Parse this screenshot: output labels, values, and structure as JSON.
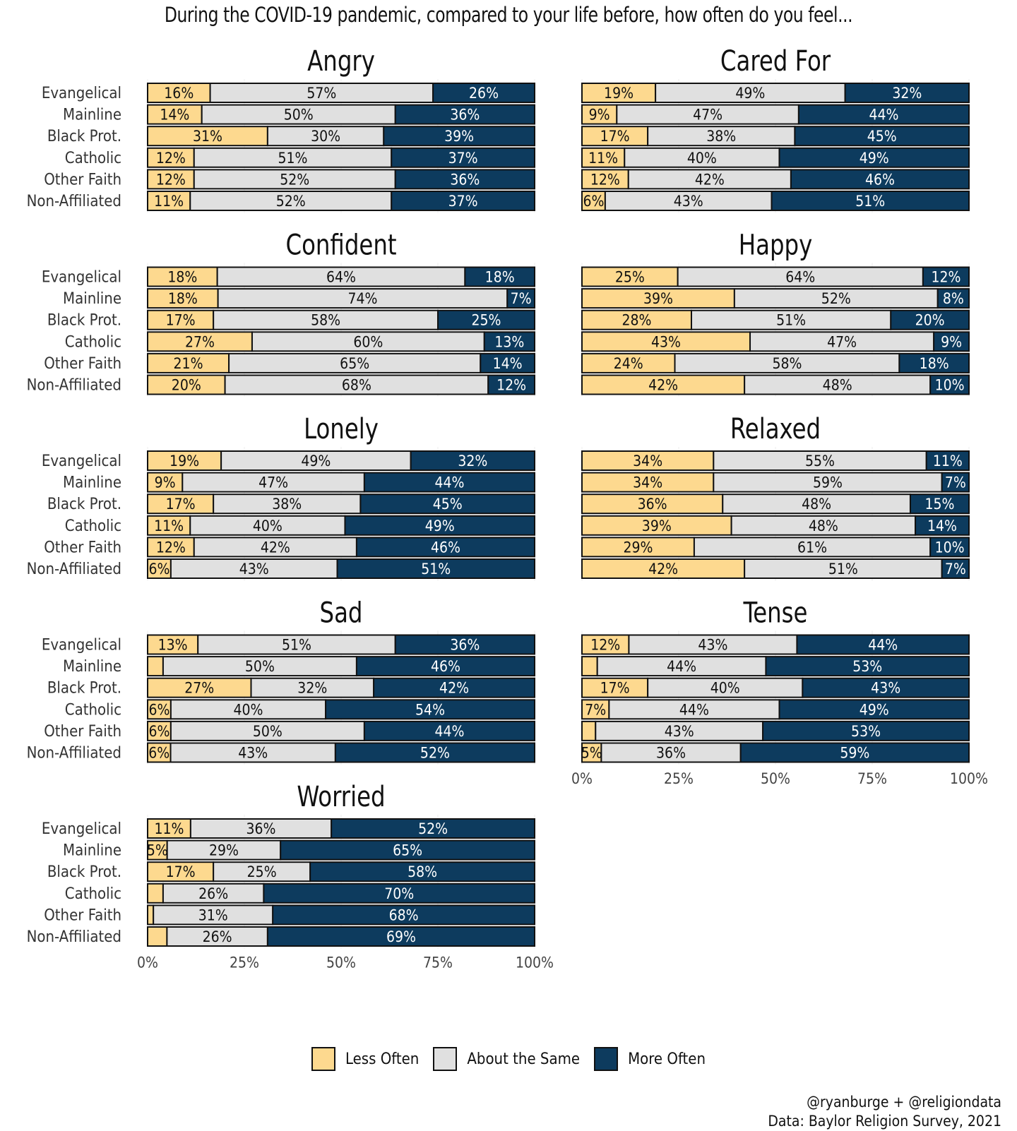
{
  "title": "During the COVID-19 pandemic, compared to your life before, how often do you feel...",
  "colors": {
    "less": "#FDD98F",
    "same": "#E0E0E0",
    "more": "#0D3B5E",
    "outline": "#111111"
  },
  "legend": {
    "less": "Less Often",
    "same": "About the Same",
    "more": "More Often"
  },
  "caption": {
    "line1": "@ryanburge + @religiondata",
    "line2": "Data: Baylor Religion Survey, 2021"
  },
  "chart_data": {
    "type": "bar",
    "orientation": "horizontal-stacked",
    "categories": [
      "Evangelical",
      "Mainline",
      "Black Prot.",
      "Catholic",
      "Other Faith",
      "Non-Affiliated"
    ],
    "series_names": [
      "Less Often",
      "About the Same",
      "More Often"
    ],
    "xlim": [
      0,
      100
    ],
    "x_ticks": [
      "0%",
      "25%",
      "50%",
      "75%",
      "100%"
    ],
    "panels": [
      {
        "title": "Angry",
        "values": [
          [
            16,
            57,
            26
          ],
          [
            14,
            50,
            36
          ],
          [
            31,
            30,
            39
          ],
          [
            12,
            51,
            37
          ],
          [
            12,
            52,
            36
          ],
          [
            11,
            52,
            37
          ]
        ],
        "labels": [
          [
            "16%",
            "57%",
            "26%"
          ],
          [
            "14%",
            "50%",
            "36%"
          ],
          [
            "31%",
            "30%",
            "39%"
          ],
          [
            "12%",
            "51%",
            "37%"
          ],
          [
            "12%",
            "52%",
            "36%"
          ],
          [
            "11%",
            "52%",
            "37%"
          ]
        ]
      },
      {
        "title": "Cared For",
        "values": [
          [
            19,
            49,
            32
          ],
          [
            9,
            47,
            44
          ],
          [
            17,
            38,
            45
          ],
          [
            11,
            40,
            49
          ],
          [
            12,
            42,
            46
          ],
          [
            6,
            43,
            51
          ]
        ],
        "labels": [
          [
            "19%",
            "49%",
            "32%"
          ],
          [
            "9%",
            "47%",
            "44%"
          ],
          [
            "17%",
            "38%",
            "45%"
          ],
          [
            "11%",
            "40%",
            "49%"
          ],
          [
            "12%",
            "42%",
            "46%"
          ],
          [
            "6%",
            "43%",
            "51%"
          ]
        ]
      },
      {
        "title": "Confident",
        "values": [
          [
            18,
            64,
            18
          ],
          [
            18,
            74,
            7
          ],
          [
            17,
            58,
            25
          ],
          [
            27,
            60,
            13
          ],
          [
            21,
            65,
            14
          ],
          [
            20,
            68,
            12
          ]
        ],
        "labels": [
          [
            "18%",
            "64%",
            "18%"
          ],
          [
            "18%",
            "74%",
            "7%"
          ],
          [
            "17%",
            "58%",
            "25%"
          ],
          [
            "27%",
            "60%",
            "13%"
          ],
          [
            "21%",
            "65%",
            "14%"
          ],
          [
            "20%",
            "68%",
            "12%"
          ]
        ]
      },
      {
        "title": "Happy",
        "values": [
          [
            25,
            64,
            12
          ],
          [
            39,
            52,
            8
          ],
          [
            28,
            51,
            20
          ],
          [
            43,
            47,
            9
          ],
          [
            24,
            58,
            18
          ],
          [
            42,
            48,
            10
          ]
        ],
        "labels": [
          [
            "25%",
            "64%",
            "12%"
          ],
          [
            "39%",
            "52%",
            "8%"
          ],
          [
            "28%",
            "51%",
            "20%"
          ],
          [
            "43%",
            "47%",
            "9%"
          ],
          [
            "24%",
            "58%",
            "18%"
          ],
          [
            "42%",
            "48%",
            "10%"
          ]
        ]
      },
      {
        "title": "Lonely",
        "values": [
          [
            19,
            49,
            32
          ],
          [
            9,
            47,
            44
          ],
          [
            17,
            38,
            45
          ],
          [
            11,
            40,
            49
          ],
          [
            12,
            42,
            46
          ],
          [
            6,
            43,
            51
          ]
        ],
        "labels": [
          [
            "19%",
            "49%",
            "32%"
          ],
          [
            "9%",
            "47%",
            "44%"
          ],
          [
            "17%",
            "38%",
            "45%"
          ],
          [
            "11%",
            "40%",
            "49%"
          ],
          [
            "12%",
            "42%",
            "46%"
          ],
          [
            "6%",
            "43%",
            "51%"
          ]
        ]
      },
      {
        "title": "Relaxed",
        "values": [
          [
            34,
            55,
            11
          ],
          [
            34,
            59,
            7
          ],
          [
            36,
            48,
            15
          ],
          [
            39,
            48,
            14
          ],
          [
            29,
            61,
            10
          ],
          [
            42,
            51,
            7
          ]
        ],
        "labels": [
          [
            "34%",
            "55%",
            "11%"
          ],
          [
            "34%",
            "59%",
            "7%"
          ],
          [
            "36%",
            "48%",
            "15%"
          ],
          [
            "39%",
            "48%",
            "14%"
          ],
          [
            "29%",
            "61%",
            "10%"
          ],
          [
            "42%",
            "51%",
            "7%"
          ]
        ]
      },
      {
        "title": "Sad",
        "values": [
          [
            13,
            51,
            36
          ],
          [
            4,
            50,
            46
          ],
          [
            27,
            32,
            42
          ],
          [
            6,
            40,
            54
          ],
          [
            6,
            50,
            44
          ],
          [
            6,
            43,
            52
          ]
        ],
        "labels": [
          [
            "13%",
            "51%",
            "36%"
          ],
          [
            "",
            "50%",
            "46%"
          ],
          [
            "27%",
            "32%",
            "42%"
          ],
          [
            "6%",
            "40%",
            "54%"
          ],
          [
            "6%",
            "50%",
            "44%"
          ],
          [
            "6%",
            "43%",
            "52%"
          ]
        ]
      },
      {
        "title": "Tense",
        "values": [
          [
            12,
            43,
            44
          ],
          [
            4,
            44,
            53
          ],
          [
            17,
            40,
            43
          ],
          [
            7,
            44,
            49
          ],
          [
            3.5,
            43,
            53
          ],
          [
            5,
            36,
            59
          ]
        ],
        "labels": [
          [
            "12%",
            "43%",
            "44%"
          ],
          [
            "",
            "44%",
            "53%"
          ],
          [
            "17%",
            "40%",
            "43%"
          ],
          [
            "7%",
            "44%",
            "49%"
          ],
          [
            "",
            "43%",
            "53%"
          ],
          [
            "5%",
            "36%",
            "59%"
          ]
        ]
      },
      {
        "title": "Worried",
        "values": [
          [
            11,
            36,
            52
          ],
          [
            5,
            29,
            65
          ],
          [
            17,
            25,
            58
          ],
          [
            4,
            26,
            70
          ],
          [
            1.5,
            31,
            68
          ],
          [
            5,
            26,
            69
          ]
        ],
        "labels": [
          [
            "11%",
            "36%",
            "52%"
          ],
          [
            "5%",
            "29%",
            "65%"
          ],
          [
            "17%",
            "25%",
            "58%"
          ],
          [
            "",
            "26%",
            "70%"
          ],
          [
            "",
            "31%",
            "68%"
          ],
          [
            "",
            "26%",
            "69%"
          ]
        ]
      }
    ]
  }
}
